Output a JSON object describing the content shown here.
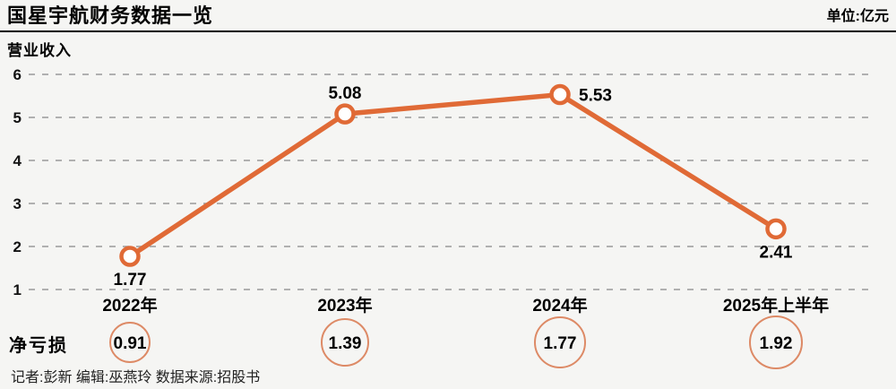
{
  "header": {
    "title": "国星宇航财务数据一览",
    "unit": "单位:亿元"
  },
  "chart_data": {
    "type": "line",
    "title": "营业收入",
    "categories": [
      "2022年",
      "2023年",
      "2024年",
      "2025年上半年"
    ],
    "series": [
      {
        "name": "营业收入",
        "values": [
          1.77,
          5.08,
          5.53,
          2.41
        ]
      },
      {
        "name": "净亏损",
        "values": [
          0.91,
          1.39,
          1.77,
          1.92
        ]
      }
    ],
    "ylim": [
      1,
      6
    ],
    "yticks": [
      1,
      2,
      3,
      4,
      5,
      6
    ],
    "grid": "dashed-horizontal",
    "legend": "none",
    "accent_color": "#e06a36",
    "net_loss_circle_color": "#dd8a66",
    "label_positions": [
      "below",
      "above",
      "right",
      "below"
    ],
    "net_loss_radii": [
      22,
      26,
      28,
      29
    ]
  },
  "net_loss": {
    "label": "净亏损"
  },
  "footer": {
    "credits": "记者:彭新  编辑:巫燕玲  数据来源:招股书"
  }
}
